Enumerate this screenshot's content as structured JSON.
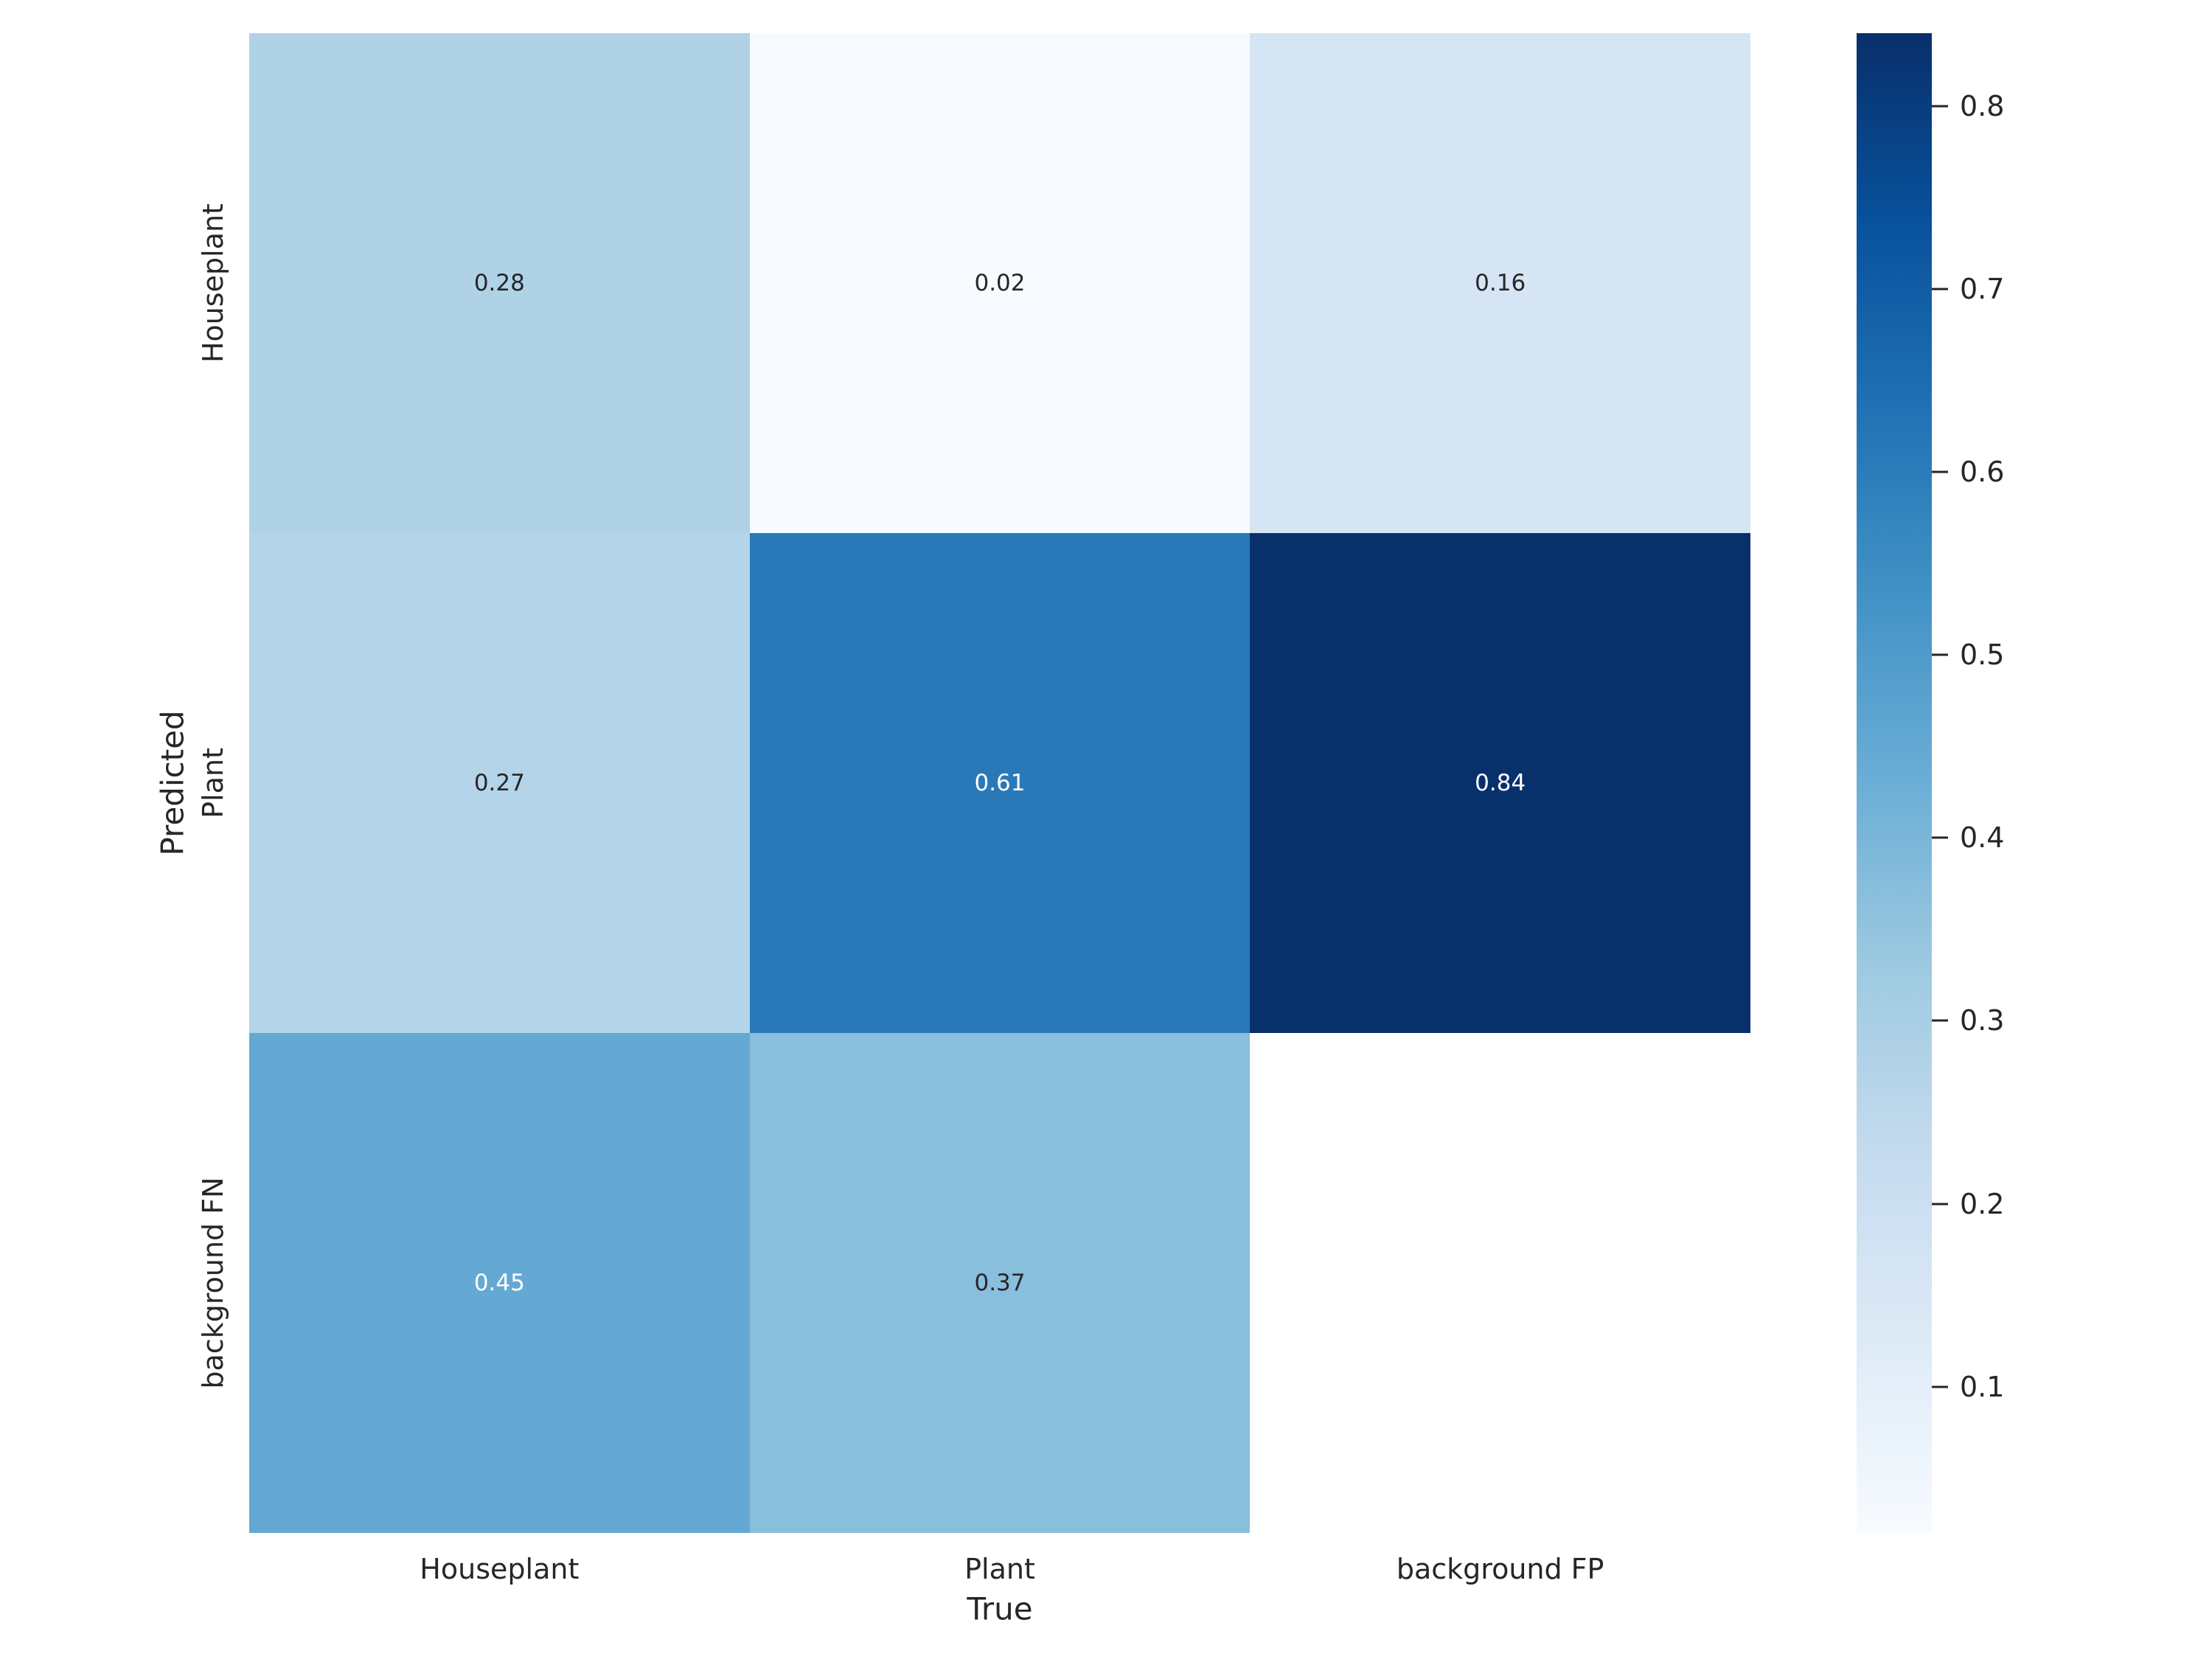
{
  "chart_data": {
    "type": "heatmap",
    "title": "",
    "xlabel": "True",
    "ylabel": "Predicted",
    "x_categories": [
      "Houseplant",
      "Plant",
      "background FP"
    ],
    "y_categories": [
      "Houseplant",
      "Plant",
      "background FN"
    ],
    "matrix": [
      [
        0.28,
        0.02,
        0.16
      ],
      [
        0.27,
        0.61,
        0.84
      ],
      [
        0.45,
        0.37,
        null
      ]
    ],
    "cells": [
      {
        "row": 0,
        "col": 0,
        "label": "0.28",
        "color": "#b0d2e7",
        "text_color": "#262626"
      },
      {
        "row": 0,
        "col": 1,
        "label": "0.02",
        "color": "#f7fbff",
        "text_color": "#262626"
      },
      {
        "row": 0,
        "col": 2,
        "label": "0.16",
        "color": "#d5e5f4",
        "text_color": "#262626"
      },
      {
        "row": 1,
        "col": 0,
        "label": "0.27",
        "color": "#b4d4e9",
        "text_color": "#262626"
      },
      {
        "row": 1,
        "col": 1,
        "label": "0.61",
        "color": "#2979b9",
        "text_color": "#ffffff"
      },
      {
        "row": 1,
        "col": 2,
        "label": "0.84",
        "color": "#08306b",
        "text_color": "#ffffff"
      },
      {
        "row": 2,
        "col": 0,
        "label": "0.45",
        "color": "#63a9d3",
        "text_color": "#ffffff"
      },
      {
        "row": 2,
        "col": 1,
        "label": "0.37",
        "color": "#89bedc",
        "text_color": "#262626"
      },
      {
        "row": 2,
        "col": 2,
        "label": null,
        "color": "#ffffff",
        "text_color": null
      }
    ],
    "colormap": "Blues",
    "vmin": 0.02,
    "vmax": 0.84,
    "grid": false,
    "legend_position": "right-colorbar",
    "colorbar": {
      "tick_labels": [
        "0.8",
        "0.7",
        "0.6",
        "0.5",
        "0.4",
        "0.3",
        "0.2",
        "0.1"
      ],
      "gradient_stops_top_down": [
        {
          "pos": 0,
          "color": "#08306b"
        },
        {
          "pos": 12.5,
          "color": "#08519c"
        },
        {
          "pos": 25,
          "color": "#2171b5"
        },
        {
          "pos": 37.5,
          "color": "#4292c6"
        },
        {
          "pos": 50,
          "color": "#6baed6"
        },
        {
          "pos": 62.5,
          "color": "#9ecae1"
        },
        {
          "pos": 75,
          "color": "#c6dbef"
        },
        {
          "pos": 87.5,
          "color": "#deebf7"
        },
        {
          "pos": 100,
          "color": "#f7fbff"
        }
      ]
    },
    "colors": {
      "background": "#ffffff",
      "text": "#262626",
      "masked_cell": "#ffffff"
    }
  }
}
